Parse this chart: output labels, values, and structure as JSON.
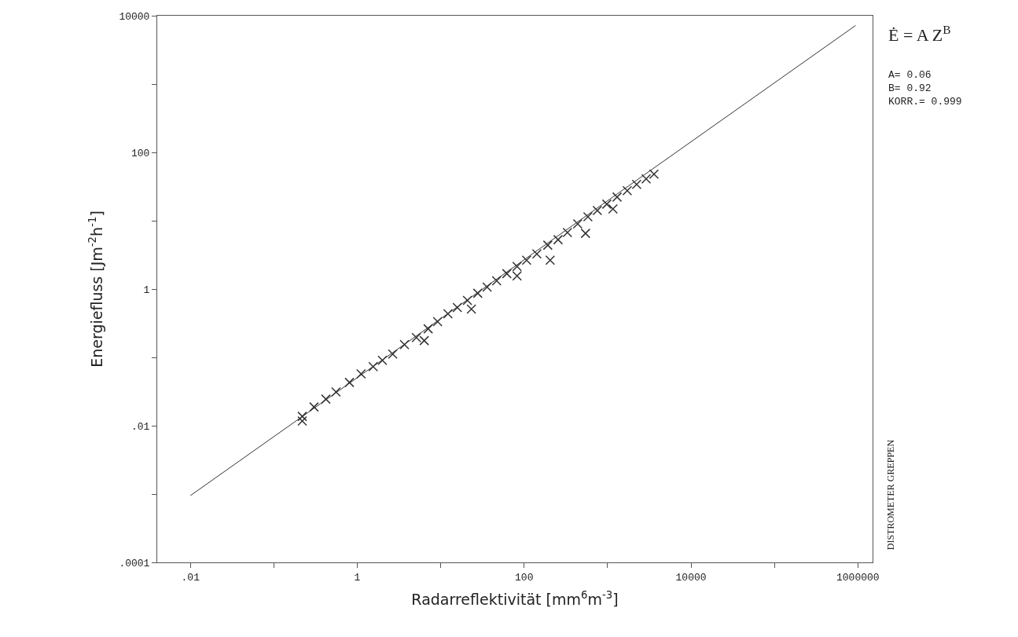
{
  "chart_data": {
    "type": "scatter",
    "xlabel": "Radarreflektivität [mm$^{6}$m$^{-3}$]",
    "ylabel": "Energiefluss [Jm$^{-2}$h$^{-1}$]",
    "annotations": [
      "Ė = A Z$^{B}$",
      "A= 0.06\nB= 0.92\nKORR.= 0.999",
      "DISTROMETER GREPPEN"
    ],
    "log": "xy",
    "xlim": [
      0.004,
      1500000
    ],
    "ylim": [
      0.0001,
      10000
    ],
    "xticks": [
      {
        "value": 0.01,
        "label": ".01"
      },
      {
        "value": 0.1,
        "label": null
      },
      1,
      {
        "value": 10,
        "label": null
      },
      100,
      {
        "value": 1000,
        "label": null
      },
      10000,
      {
        "value": 100000,
        "label": null
      },
      1000000
    ],
    "yticks": [
      {
        "value": 0.0001,
        "label": ".0001"
      },
      {
        "value": 0.001,
        "label": null
      },
      {
        "value": 0.01,
        "label": ".01"
      },
      {
        "value": 0.1,
        "label": null
      },
      1,
      {
        "value": 10,
        "label": null
      },
      100,
      {
        "value": 1000,
        "label": null
      },
      10000
    ],
    "series": [
      {
        "type": "line",
        "marker": "none",
        "color": "#333333",
        "x": [
          0.01,
          940000
        ],
        "values": [
          0.00095,
          7200
        ]
      },
      {
        "marker": "cross",
        "color": "#333333",
        "x": [
          0.219,
          0.219,
          0.303,
          0.42,
          0.556,
          0.805,
          1.11,
          1.55,
          2.0,
          2.66,
          3.68,
          5.11,
          7.07,
          9.17,
          12.2,
          15.8,
          20.9,
          27.8,
          36.0,
          46.8,
          62.0,
          82.2,
          107,
          142,
          192,
          255,
          330,
          438,
          581,
          754,
          979,
          1300,
          1720,
          2230,
          2900,
          3600,
          82.2,
          23.3,
          544,
          205,
          6.34,
          1160
        ],
        "values": [
          0.0137,
          0.0117,
          0.0188,
          0.0245,
          0.0312,
          0.043,
          0.0575,
          0.0731,
          0.0904,
          0.112,
          0.154,
          0.195,
          0.262,
          0.333,
          0.434,
          0.537,
          0.682,
          0.867,
          1.07,
          1.32,
          1.68,
          2.14,
          2.65,
          3.27,
          4.39,
          5.28,
          6.71,
          9.0,
          11.4,
          14.1,
          17.5,
          22.2,
          27.5,
          34.0,
          40.9,
          48.0,
          1.56,
          0.509,
          6.53,
          2.65,
          0.176,
          14.9
        ]
      }
    ]
  }
}
